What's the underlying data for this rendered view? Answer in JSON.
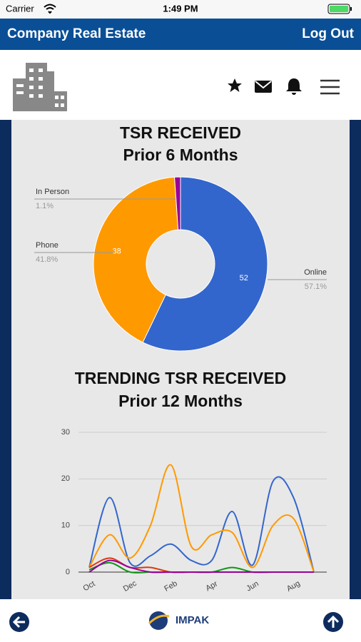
{
  "status_bar": {
    "carrier": "Carrier",
    "time": "1:49 PM"
  },
  "header": {
    "title": "Company Real Estate",
    "action": "Log Out"
  },
  "chart_data": [
    {
      "type": "pie",
      "title": "TSR RECEIVED",
      "subtitle": "Prior 6 Months",
      "categories": [
        "Online",
        "Phone",
        "In Person"
      ],
      "values": [
        52,
        38,
        1
      ],
      "percent_labels": [
        "57.1%",
        "41.8%",
        "1.1%"
      ],
      "colors": [
        "#3366cc",
        "#ff9900",
        "#990099"
      ],
      "donut": true
    },
    {
      "type": "line",
      "title": "TRENDING TSR RECEIVED",
      "subtitle": "Prior 12 Months",
      "categories": [
        "Oct",
        null,
        "Dec",
        null,
        "Feb",
        null,
        "Apr",
        null,
        "Jun",
        null,
        "Aug",
        null
      ],
      "series": [
        {
          "color": "#3366cc",
          "values": [
            1,
            16,
            2,
            3.5,
            6,
            2.5,
            2.5,
            13,
            1.5,
            19.5,
            16,
            0
          ]
        },
        {
          "color": "#ff9900",
          "values": [
            1,
            8,
            3,
            10,
            23,
            5.5,
            8,
            8.5,
            1,
            10,
            11.5,
            0
          ]
        },
        {
          "color": "#dc3912",
          "values": [
            1,
            3,
            1,
            1,
            0,
            0,
            0,
            0,
            0,
            0,
            0,
            0
          ]
        },
        {
          "color": "#109618",
          "values": [
            0.5,
            2,
            0,
            0,
            0,
            0,
            0,
            1,
            0,
            0,
            0,
            0
          ]
        },
        {
          "color": "#990099",
          "values": [
            0,
            2.5,
            1,
            0,
            0,
            0,
            0,
            0,
            0,
            0,
            0,
            0
          ]
        }
      ],
      "ylim": [
        0,
        30
      ],
      "yticks": [
        0,
        10,
        20,
        30
      ],
      "grid": true
    }
  ],
  "footer": {
    "brand": "IMPAK"
  }
}
